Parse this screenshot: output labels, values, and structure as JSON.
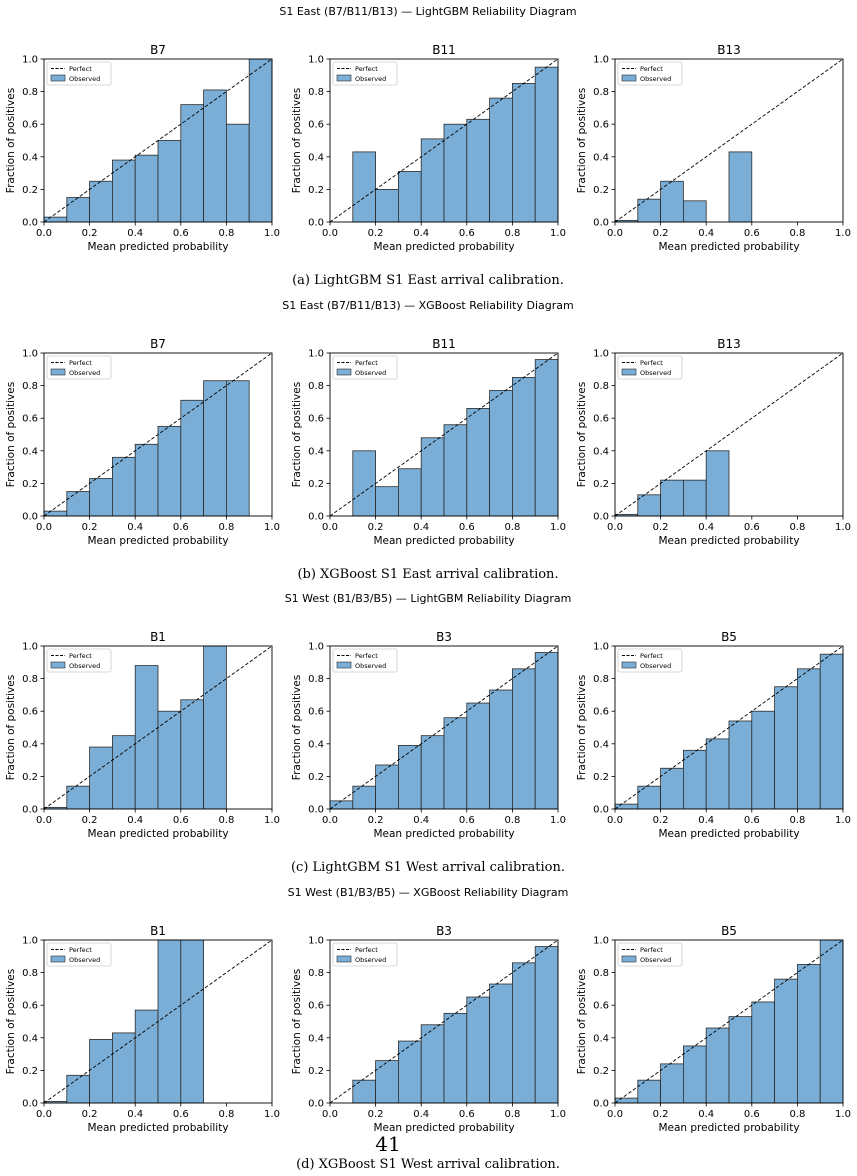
{
  "page_number": "41",
  "colors": {
    "bar_fill": "#7aaed6",
    "bar_edge": "#2b2b2b",
    "perfect_line": "#000000",
    "axis": "#000000"
  },
  "legend": {
    "perfect": "Perfect",
    "observed": "Observed"
  },
  "axes_common": {
    "xlabel": "Mean predicted probability",
    "ylabel": "Fraction of positives",
    "xlim": [
      0,
      1
    ],
    "ylim": [
      0,
      1
    ],
    "ticks": [
      "0.0",
      "0.2",
      "0.4",
      "0.6",
      "0.8",
      "1.0"
    ],
    "bin_width": 0.1
  },
  "figures": [
    {
      "suptitle": "S1 East (B7/B11/B13) — LightGBM Reliability Diagram",
      "caption": "(a) LightGBM S1 East arrival calibration."
    },
    {
      "suptitle": "S1 East (B7/B11/B13) — XGBoost Reliability Diagram",
      "caption": "(b) XGBoost S1 East arrival calibration."
    },
    {
      "suptitle": "S1 West (B1/B3/B5) — LightGBM Reliability Diagram",
      "caption": "(c) LightGBM S1 West arrival calibration."
    },
    {
      "suptitle": "S1 West (B1/B3/B5) — XGBoost Reliability Diagram",
      "caption": "(d) XGBoost S1 West arrival calibration."
    }
  ],
  "chart_data": [
    {
      "type": "bar",
      "figure": 0,
      "title": "B7",
      "bin_starts": [
        0.0,
        0.1,
        0.2,
        0.3,
        0.4,
        0.5,
        0.6,
        0.7,
        0.8,
        0.9
      ],
      "values": [
        0.03,
        0.15,
        0.25,
        0.38,
        0.41,
        0.5,
        0.72,
        0.81,
        0.6,
        1.0
      ]
    },
    {
      "type": "bar",
      "figure": 0,
      "title": "B11",
      "bin_starts": [
        0.1,
        0.2,
        0.3,
        0.4,
        0.5,
        0.6,
        0.7,
        0.8,
        0.9
      ],
      "values": [
        0.43,
        0.2,
        0.31,
        0.51,
        0.6,
        0.63,
        0.76,
        0.85,
        0.95
      ]
    },
    {
      "type": "bar",
      "figure": 0,
      "title": "B13",
      "bin_starts": [
        0.0,
        0.1,
        0.2,
        0.3,
        0.5
      ],
      "values": [
        0.01,
        0.14,
        0.25,
        0.13,
        0.43
      ]
    },
    {
      "type": "bar",
      "figure": 1,
      "title": "B7",
      "bin_starts": [
        0.0,
        0.1,
        0.2,
        0.3,
        0.4,
        0.5,
        0.6,
        0.7,
        0.8
      ],
      "values": [
        0.03,
        0.15,
        0.23,
        0.36,
        0.44,
        0.55,
        0.71,
        0.83,
        0.83
      ]
    },
    {
      "type": "bar",
      "figure": 1,
      "title": "B11",
      "bin_starts": [
        0.1,
        0.2,
        0.3,
        0.4,
        0.5,
        0.6,
        0.7,
        0.8,
        0.9
      ],
      "values": [
        0.4,
        0.18,
        0.29,
        0.48,
        0.56,
        0.66,
        0.77,
        0.85,
        0.96
      ]
    },
    {
      "type": "bar",
      "figure": 1,
      "title": "B13",
      "bin_starts": [
        0.0,
        0.1,
        0.2,
        0.3,
        0.4
      ],
      "values": [
        0.01,
        0.13,
        0.22,
        0.22,
        0.4
      ]
    },
    {
      "type": "bar",
      "figure": 2,
      "title": "B1",
      "bin_starts": [
        0.0,
        0.1,
        0.2,
        0.3,
        0.4,
        0.5,
        0.6,
        0.7
      ],
      "values": [
        0.01,
        0.14,
        0.38,
        0.45,
        0.88,
        0.6,
        0.67,
        1.0
      ]
    },
    {
      "type": "bar",
      "figure": 2,
      "title": "B3",
      "bin_starts": [
        0.0,
        0.1,
        0.2,
        0.3,
        0.4,
        0.5,
        0.6,
        0.7,
        0.8,
        0.9
      ],
      "values": [
        0.05,
        0.14,
        0.27,
        0.39,
        0.45,
        0.56,
        0.65,
        0.73,
        0.86,
        0.96
      ]
    },
    {
      "type": "bar",
      "figure": 2,
      "title": "B5",
      "bin_starts": [
        0.0,
        0.1,
        0.2,
        0.3,
        0.4,
        0.5,
        0.6,
        0.7,
        0.8,
        0.9
      ],
      "values": [
        0.03,
        0.14,
        0.25,
        0.36,
        0.43,
        0.54,
        0.6,
        0.75,
        0.86,
        0.95
      ]
    },
    {
      "type": "bar",
      "figure": 3,
      "title": "B1",
      "bin_starts": [
        0.0,
        0.1,
        0.2,
        0.3,
        0.4,
        0.5,
        0.6
      ],
      "values": [
        0.01,
        0.17,
        0.39,
        0.43,
        0.57,
        1.0,
        1.0
      ]
    },
    {
      "type": "bar",
      "figure": 3,
      "title": "B3",
      "bin_starts": [
        0.1,
        0.2,
        0.3,
        0.4,
        0.5,
        0.6,
        0.7,
        0.8,
        0.9
      ],
      "values": [
        0.14,
        0.26,
        0.38,
        0.48,
        0.55,
        0.65,
        0.73,
        0.86,
        0.96
      ]
    },
    {
      "type": "bar",
      "figure": 3,
      "title": "B5",
      "bin_starts": [
        0.0,
        0.1,
        0.2,
        0.3,
        0.4,
        0.5,
        0.6,
        0.7,
        0.8,
        0.9
      ],
      "values": [
        0.03,
        0.14,
        0.24,
        0.35,
        0.46,
        0.53,
        0.62,
        0.76,
        0.85,
        1.0
      ]
    }
  ]
}
